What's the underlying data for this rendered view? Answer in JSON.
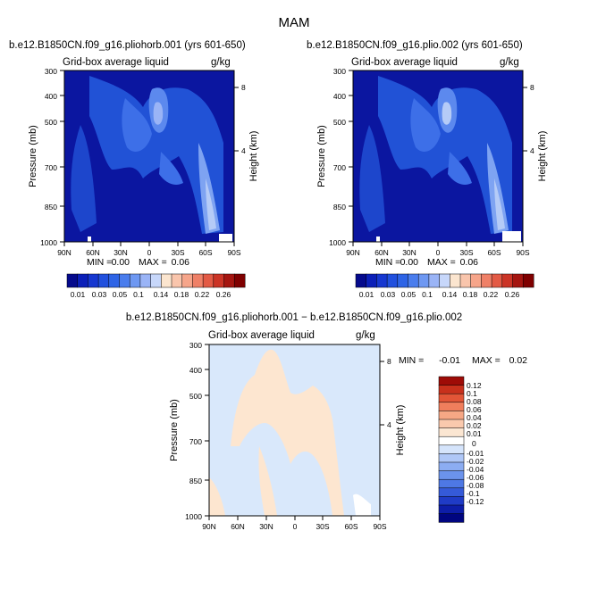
{
  "figure": {
    "season": "MAM"
  },
  "colors": {
    "levels_abs": [
      "#050a8c",
      "#0b1fb8",
      "#1637d0",
      "#2150de",
      "#2e64e6",
      "#4a7ded",
      "#6e98f2",
      "#9ab4f6",
      "#c7d7fa",
      "#fbe5cf",
      "#f9c5ac",
      "#f6a58a",
      "#ef8067",
      "#e35a45",
      "#cb3426",
      "#a51510",
      "#7f0000"
    ],
    "levels_diff": [
      "#000580",
      "#0d1da8",
      "#1f3bc6",
      "#355ad8",
      "#4e78e4",
      "#6b93ec",
      "#8cadf2",
      "#afc7f7",
      "#d5e4fb",
      "#ffffff",
      "#fbe6d2",
      "#fac9ad",
      "#f6a785",
      "#f07e5c",
      "#e25537",
      "#c8301c",
      "#9e0b07"
    ],
    "field_abs_dark": "#0b16a0"
  },
  "chart_data": [
    {
      "type": "heatmap",
      "title": "b.e12.B1850CN.f09_g16.pliohorb.001 (yrs 601-650)",
      "subtitle_left": "Grid-box average liquid",
      "subtitle_right": "g/kg",
      "xlabel": "",
      "ylabel": "Pressure (mb)",
      "ylabel_right": "Height (km)",
      "xticks": [
        "90N",
        "60N",
        "30N",
        "0",
        "30S",
        "60S",
        "90S"
      ],
      "yticks": [
        "300",
        "400",
        "500",
        "700",
        "850",
        "1000"
      ],
      "yticks_right": [
        "8",
        "4"
      ],
      "x_range": [
        90,
        -90
      ],
      "y_range_mb": [
        1000,
        300
      ],
      "min_label": "MIN =",
      "min_value": "0.00",
      "max_label": "MAX =",
      "max_value": "0.06",
      "colorbar_levels": [
        "0.01",
        "0.03",
        "0.05",
        "0.1",
        "0.14",
        "0.18",
        "0.22",
        "0.26"
      ],
      "colorbar_ticks": [
        "0.01",
        "0.03",
        "0.05",
        "0.1",
        "0.14",
        "0.18",
        "0.22",
        "0.26"
      ]
    },
    {
      "type": "heatmap",
      "title": "b.e12.B1850CN.f09_g16.plio.002 (yrs 601-650)",
      "subtitle_left": "Grid-box average liquid",
      "subtitle_right": "g/kg",
      "xlabel": "",
      "ylabel": "Pressure (mb)",
      "ylabel_right": "Height (km)",
      "xticks": [
        "90N",
        "60N",
        "30N",
        "0",
        "30S",
        "60S",
        "90S"
      ],
      "yticks": [
        "300",
        "400",
        "500",
        "700",
        "850",
        "1000"
      ],
      "yticks_right": [
        "8",
        "4"
      ],
      "x_range": [
        90,
        -90
      ],
      "y_range_mb": [
        1000,
        300
      ],
      "min_label": "MIN =",
      "min_value": "0.00",
      "max_label": "MAX =",
      "max_value": "0.06",
      "colorbar_levels": [
        "0.01",
        "0.03",
        "0.05",
        "0.1",
        "0.14",
        "0.18",
        "0.22",
        "0.26"
      ],
      "colorbar_ticks": [
        "0.01",
        "0.03",
        "0.05",
        "0.1",
        "0.14",
        "0.18",
        "0.22",
        "0.26"
      ]
    },
    {
      "type": "heatmap",
      "title": "b.e12.B1850CN.f09_g16.pliohorb.001 − b.e12.B1850CN.f09_g16.plio.002",
      "subtitle_left": "Grid-box average liquid",
      "subtitle_right": "g/kg",
      "xlabel": "",
      "ylabel": "Pressure (mb)",
      "ylabel_right": "Height (km)",
      "xticks": [
        "90N",
        "60N",
        "30N",
        "0",
        "30S",
        "60S",
        "90S"
      ],
      "yticks": [
        "300",
        "400",
        "500",
        "700",
        "850",
        "1000"
      ],
      "yticks_right": [
        "8",
        "4"
      ],
      "x_range": [
        90,
        -90
      ],
      "y_range_mb": [
        1000,
        300
      ],
      "min_label": "MIN =",
      "min_value": "-0.01",
      "max_label": "MAX =",
      "max_value": "0.02",
      "colorbar_ticks": [
        "0.12",
        "0.1",
        "0.08",
        "0.06",
        "0.04",
        "0.02",
        "0.01",
        "0",
        "-0.01",
        "-0.02",
        "-0.04",
        "-0.06",
        "-0.08",
        "-0.1",
        "-0.12"
      ]
    }
  ]
}
